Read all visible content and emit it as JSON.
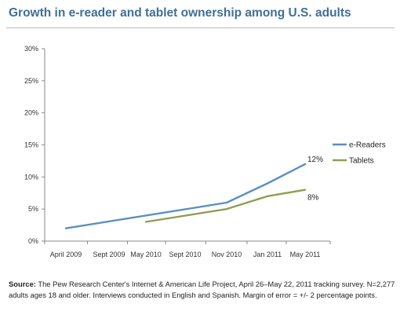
{
  "chart_data": {
    "type": "line",
    "title": "Growth in e-reader and tablet ownership among U.S. adults",
    "xlabel": "",
    "ylabel": "",
    "categories": [
      "April 2009",
      "Sept 2009",
      "May 2010",
      "Sept 2010",
      "Nov 2010",
      "Jan 2011",
      "May 2011"
    ],
    "y_ticks": [
      "0%",
      "5%",
      "10%",
      "15%",
      "20%",
      "25%",
      "30%"
    ],
    "ylim": [
      0,
      30
    ],
    "grid": false,
    "legend_position": "right",
    "series": [
      {
        "name": "e-Readers",
        "color": "#5b8fc0",
        "points": [
          {
            "category": "April 2009",
            "value": 2
          },
          {
            "category": "Nov 2010",
            "value": 6
          },
          {
            "category": "Jan 2011",
            "value": 9
          },
          {
            "category": "May 2011",
            "value": 12
          }
        ],
        "end_label": "12%"
      },
      {
        "name": "Tablets",
        "color": "#8f9e55",
        "points": [
          {
            "category": "May 2010",
            "value": 3
          },
          {
            "category": "Nov 2010",
            "value": 5
          },
          {
            "category": "Jan 2011",
            "value": 7
          },
          {
            "category": "May 2011",
            "value": 8
          }
        ],
        "end_label": "8%"
      }
    ]
  },
  "source": {
    "label": "Source:",
    "text": "The Pew Research Center's Internet & American Life Project, April 26–May 22, 2011 tracking survey. N=2,277 adults ages 18 and older. Interviews conducted in English and Spanish. Margin of error = +/- 2 percentage points."
  }
}
